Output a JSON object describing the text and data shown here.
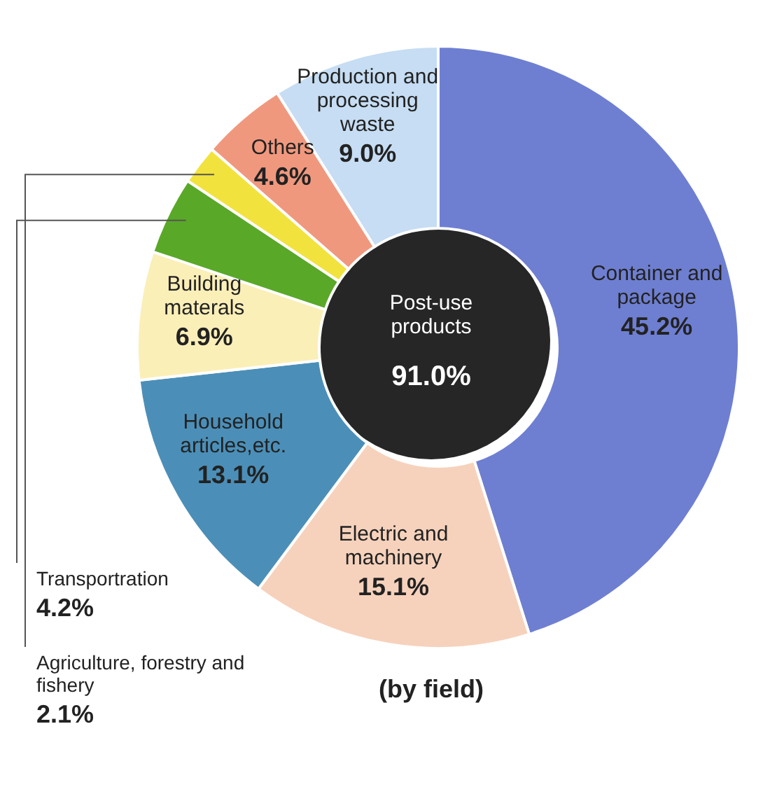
{
  "chart_data": {
    "type": "donut",
    "subtitle": "(by field)",
    "categories": [
      "Container and package",
      "Electric and machinery",
      "Household articles,etc.",
      "Building materals",
      "Transportration",
      "Agriculture, forestry and fishery",
      "Others",
      "Production and processing waste"
    ],
    "values": [
      45.2,
      15.1,
      13.1,
      6.9,
      4.2,
      2.1,
      4.6,
      9.0
    ],
    "value_labels": [
      "45.2%",
      "15.1%",
      "13.1%",
      "6.9%",
      "4.2%",
      "2.1%",
      "4.6%",
      "9.0%"
    ],
    "colors": [
      "#6e7fd2",
      "#f6d2bc",
      "#4b8fb8",
      "#fbefb8",
      "#5aa828",
      "#f2e23e",
      "#f0987e",
      "#c6ddf3"
    ],
    "annotations": [
      "Post-use products",
      "91.0%"
    ],
    "legend": false
  }
}
